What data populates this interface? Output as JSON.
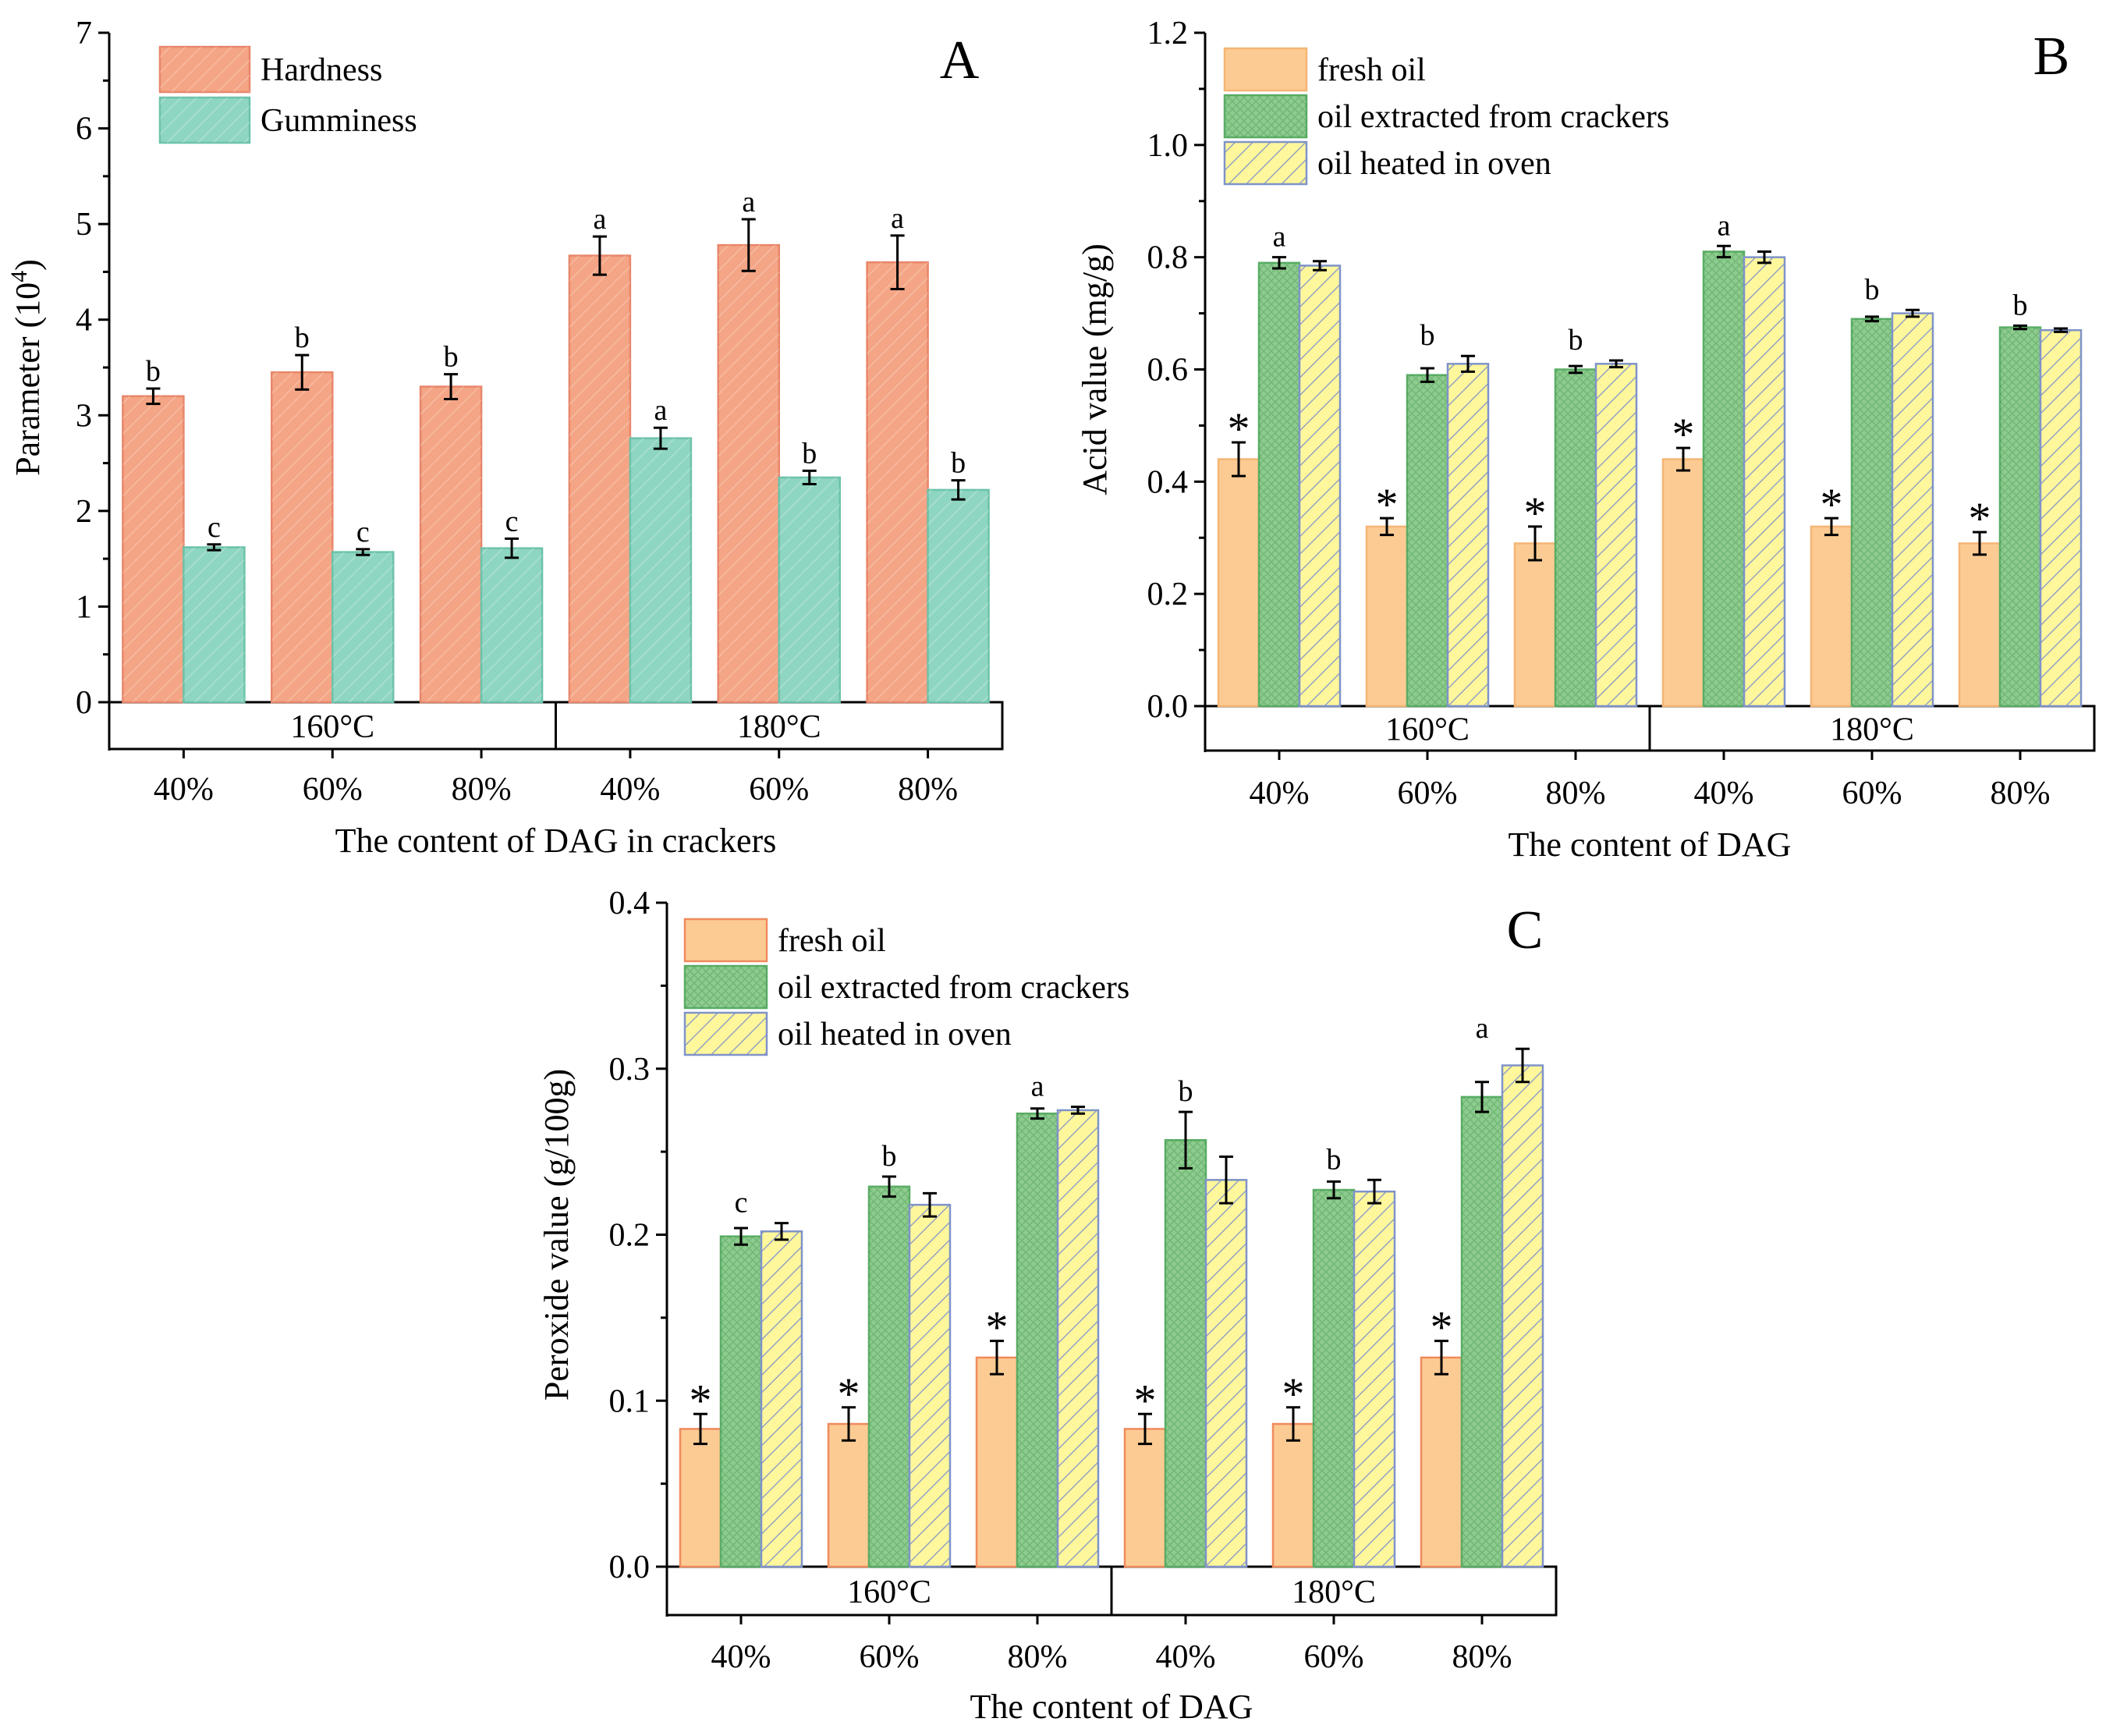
{
  "chart_data": [
    {
      "panel": "A",
      "type": "bar",
      "xlabel": "The content of DAG in crackers",
      "ylabel": "Parameter (10",
      "ylabel_superscript": "4",
      "ylabel_suffix": ")",
      "ylim": [
        0,
        7
      ],
      "yticks": [
        "0",
        "1",
        "2",
        "3",
        "4",
        "5",
        "6",
        "7"
      ],
      "groups": [
        "160°C",
        "180°C"
      ],
      "categories": [
        "40%",
        "60%",
        "80%",
        "40%",
        "60%",
        "80%"
      ],
      "series": [
        {
          "name": "Hardness",
          "color": "#F4A585",
          "edge": "#E8866A",
          "pattern": "hatch-light",
          "values": [
            3.2,
            3.45,
            3.3,
            4.67,
            4.78,
            4.6
          ],
          "errors": [
            0.08,
            0.18,
            0.13,
            0.2,
            0.27,
            0.28
          ],
          "labels": [
            "b",
            "b",
            "b",
            "a",
            "a",
            "a"
          ]
        },
        {
          "name": "Gumminess",
          "color": "#8FD6C2",
          "edge": "#6CC2AA",
          "pattern": "hatch-light",
          "values": [
            1.62,
            1.57,
            1.61,
            2.76,
            2.35,
            2.22
          ],
          "errors": [
            0.03,
            0.03,
            0.1,
            0.11,
            0.07,
            0.1
          ],
          "labels": [
            "c",
            "c",
            "c",
            "a",
            "b",
            "b"
          ]
        }
      ]
    },
    {
      "panel": "B",
      "type": "bar",
      "xlabel": "The content of DAG",
      "ylabel": "Acid value (mg/g)",
      "ylim": [
        0,
        1.2
      ],
      "yticks": [
        "0.0",
        "0.2",
        "0.4",
        "0.6",
        "0.8",
        "1.0",
        "1.2"
      ],
      "groups": [
        "160°C",
        "180°C"
      ],
      "categories": [
        "40%",
        "60%",
        "80%",
        "40%",
        "60%",
        "80%"
      ],
      "series": [
        {
          "name": "fresh oil",
          "color": "#FCCB93",
          "edge": "#F5B574",
          "pattern": "none",
          "values": [
            0.44,
            0.32,
            0.29,
            0.44,
            0.32,
            0.29
          ],
          "errors": [
            0.03,
            0.015,
            0.03,
            0.02,
            0.015,
            0.02
          ],
          "labels": [
            "*",
            "*",
            "*",
            "*",
            "*",
            "*"
          ]
        },
        {
          "name": "oil extracted from crackers",
          "color": "#8DCC8E",
          "edge": "#5BAE66",
          "pattern": "cross",
          "values": [
            0.79,
            0.59,
            0.6,
            0.81,
            0.69,
            0.675
          ],
          "errors": [
            0.01,
            0.012,
            0.006,
            0.01,
            0.004,
            0.003
          ],
          "labels": [
            "",
            "",
            "",
            "",
            "",
            ""
          ]
        },
        {
          "name": "oil heated in oven",
          "color": "#FFF79C",
          "edge": "#7F93C9",
          "pattern": "diag",
          "values": [
            0.785,
            0.61,
            0.61,
            0.8,
            0.7,
            0.67
          ],
          "errors": [
            0.008,
            0.014,
            0.006,
            0.01,
            0.006,
            0.003
          ],
          "labels": [
            "",
            "",
            "",
            "",
            "",
            ""
          ]
        }
      ],
      "group_labels": [
        "a",
        "b",
        "b",
        "a",
        "b",
        "b"
      ]
    },
    {
      "panel": "C",
      "type": "bar",
      "xlabel": "The content of DAG",
      "ylabel": "Peroxide value (g/100g)",
      "ylim": [
        0,
        0.4
      ],
      "yticks": [
        "0.0",
        "0.1",
        "0.2",
        "0.3",
        "0.4"
      ],
      "groups": [
        "160°C",
        "180°C"
      ],
      "categories": [
        "40%",
        "60%",
        "80%",
        "40%",
        "60%",
        "80%"
      ],
      "series": [
        {
          "name": "fresh oil",
          "color": "#FCCB93",
          "edge": "#F08A5D",
          "pattern": "none",
          "values": [
            0.083,
            0.086,
            0.126,
            0.083,
            0.086,
            0.126
          ],
          "errors": [
            0.009,
            0.01,
            0.01,
            0.009,
            0.01,
            0.01
          ],
          "labels": [
            "*",
            "*",
            "*",
            "*",
            "*",
            "*"
          ]
        },
        {
          "name": "oil extracted from crackers",
          "color": "#8DCC8E",
          "edge": "#5BAE66",
          "pattern": "cross",
          "values": [
            0.199,
            0.229,
            0.273,
            0.257,
            0.227,
            0.283
          ],
          "errors": [
            0.005,
            0.006,
            0.003,
            0.017,
            0.005,
            0.009
          ],
          "labels": [
            "",
            "",
            "",
            "",
            "",
            ""
          ]
        },
        {
          "name": "oil heated in oven",
          "color": "#FFF79C",
          "edge": "#7F93C9",
          "pattern": "diag",
          "values": [
            0.202,
            0.218,
            0.275,
            0.233,
            0.226,
            0.302
          ],
          "errors": [
            0.005,
            0.007,
            0.002,
            0.014,
            0.007,
            0.01
          ],
          "labels": [
            "",
            "",
            "",
            "",
            "",
            ""
          ]
        }
      ],
      "group_labels": [
        "c",
        "b",
        "a",
        "b",
        "b",
        "a"
      ]
    }
  ]
}
